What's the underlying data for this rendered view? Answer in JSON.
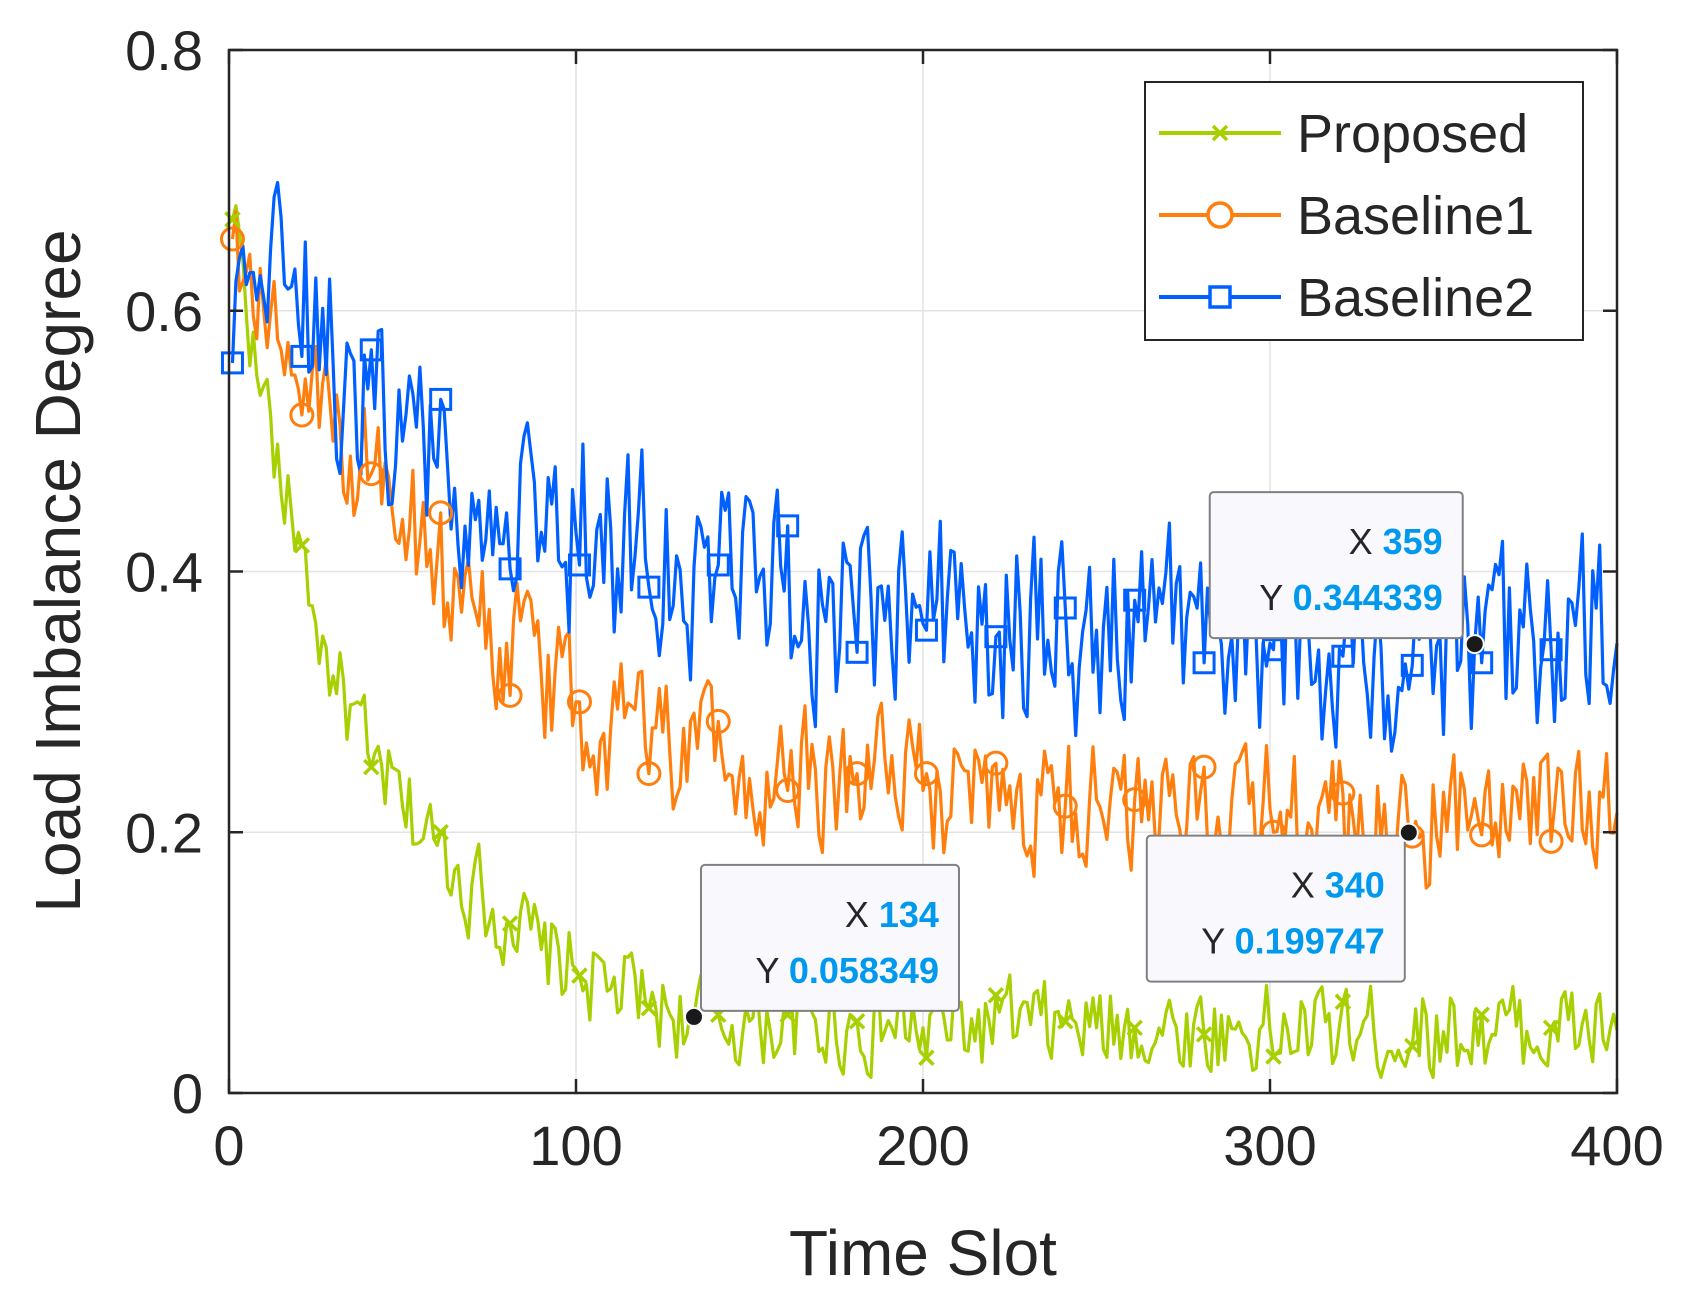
{
  "chart_data": {
    "type": "line",
    "xlabel": "Time Slot",
    "ylabel": "Load Imbalance Degree",
    "xlim": [
      0,
      400
    ],
    "ylim": [
      0,
      0.8
    ],
    "xticks": [
      0,
      100,
      200,
      300,
      400
    ],
    "yticks": [
      0,
      0.2,
      0.4,
      0.6,
      0.8
    ],
    "xtick_labels": [
      "0",
      "100",
      "200",
      "300",
      "400"
    ],
    "ytick_labels": [
      "0",
      "0.2",
      "0.4",
      "0.6",
      "0.8"
    ],
    "grid": true,
    "legend_position": "top-right",
    "series": [
      {
        "name": "Proposed",
        "color": "#a6d000",
        "marker": "x",
        "noise": 0.015,
        "keypoints": [
          [
            1,
            0.67
          ],
          [
            3,
            0.66
          ],
          [
            8,
            0.55
          ],
          [
            12,
            0.52
          ],
          [
            15,
            0.46
          ],
          [
            20,
            0.43
          ],
          [
            25,
            0.36
          ],
          [
            30,
            0.32
          ],
          [
            40,
            0.26
          ],
          [
            50,
            0.22
          ],
          [
            60,
            0.19
          ],
          [
            70,
            0.16
          ],
          [
            80,
            0.13
          ],
          [
            90,
            0.11
          ],
          [
            100,
            0.095
          ],
          [
            110,
            0.08
          ],
          [
            120,
            0.07
          ],
          [
            134,
            0.058
          ],
          [
            150,
            0.055
          ],
          [
            200,
            0.05
          ],
          [
            250,
            0.05
          ],
          [
            300,
            0.048
          ],
          [
            350,
            0.047
          ],
          [
            400,
            0.048
          ]
        ],
        "marker_points": [
          [
            1,
            0.67
          ],
          [
            21,
            0.42
          ],
          [
            41,
            0.25
          ],
          [
            61,
            0.2
          ],
          [
            81,
            0.13
          ],
          [
            101,
            0.09
          ],
          [
            121,
            0.065
          ],
          [
            141,
            0.06
          ],
          [
            161,
            0.06
          ],
          [
            181,
            0.055
          ],
          [
            201,
            0.027
          ],
          [
            221,
            0.075
          ],
          [
            241,
            0.055
          ],
          [
            261,
            0.05
          ],
          [
            281,
            0.045
          ],
          [
            301,
            0.028
          ],
          [
            321,
            0.07
          ],
          [
            341,
            0.036
          ],
          [
            361,
            0.06
          ],
          [
            381,
            0.05
          ]
        ]
      },
      {
        "name": "Baseline1",
        "color": "#ff7f0e",
        "marker": "o",
        "noise": 0.022,
        "keypoints": [
          [
            1,
            0.655
          ],
          [
            5,
            0.63
          ],
          [
            10,
            0.6
          ],
          [
            15,
            0.57
          ],
          [
            20,
            0.54
          ],
          [
            30,
            0.5
          ],
          [
            40,
            0.47
          ],
          [
            50,
            0.44
          ],
          [
            60,
            0.41
          ],
          [
            70,
            0.38
          ],
          [
            80,
            0.345
          ],
          [
            90,
            0.32
          ],
          [
            100,
            0.3
          ],
          [
            110,
            0.28
          ],
          [
            120,
            0.265
          ],
          [
            140,
            0.255
          ],
          [
            160,
            0.245
          ],
          [
            180,
            0.237
          ],
          [
            200,
            0.232
          ],
          [
            250,
            0.225
          ],
          [
            300,
            0.218
          ],
          [
            340,
            0.2
          ],
          [
            360,
            0.21
          ],
          [
            400,
            0.215
          ]
        ],
        "marker_points": [
          [
            1,
            0.655
          ],
          [
            21,
            0.52
          ],
          [
            41,
            0.475
          ],
          [
            61,
            0.445
          ],
          [
            81,
            0.305
          ],
          [
            101,
            0.3
          ],
          [
            121,
            0.245
          ],
          [
            141,
            0.285
          ],
          [
            161,
            0.232
          ],
          [
            181,
            0.245
          ],
          [
            201,
            0.245
          ],
          [
            221,
            0.253
          ],
          [
            241,
            0.22
          ],
          [
            261,
            0.225
          ],
          [
            281,
            0.25
          ],
          [
            301,
            0.2
          ],
          [
            321,
            0.23
          ],
          [
            341,
            0.197
          ],
          [
            361,
            0.198
          ],
          [
            381,
            0.193
          ]
        ]
      },
      {
        "name": "Baseline2",
        "color": "#0060ff",
        "marker": "s",
        "noise": 0.033,
        "keypoints": [
          [
            1,
            0.56
          ],
          [
            5,
            0.62
          ],
          [
            10,
            0.61
          ],
          [
            20,
            0.59
          ],
          [
            30,
            0.56
          ],
          [
            40,
            0.54
          ],
          [
            50,
            0.5
          ],
          [
            60,
            0.48
          ],
          [
            70,
            0.46
          ],
          [
            80,
            0.445
          ],
          [
            100,
            0.43
          ],
          [
            120,
            0.41
          ],
          [
            140,
            0.395
          ],
          [
            160,
            0.385
          ],
          [
            180,
            0.37
          ],
          [
            200,
            0.36
          ],
          [
            250,
            0.355
          ],
          [
            300,
            0.345
          ],
          [
            359,
            0.344
          ],
          [
            400,
            0.345
          ]
        ],
        "marker_points": [
          [
            1,
            0.56
          ],
          [
            21,
            0.565
          ],
          [
            41,
            0.57
          ],
          [
            61,
            0.532
          ],
          [
            81,
            0.402
          ],
          [
            101,
            0.405
          ],
          [
            121,
            0.388
          ],
          [
            141,
            0.405
          ],
          [
            161,
            0.435
          ],
          [
            181,
            0.338
          ],
          [
            201,
            0.355
          ],
          [
            221,
            0.35
          ],
          [
            241,
            0.372
          ],
          [
            261,
            0.378
          ],
          [
            281,
            0.33
          ],
          [
            301,
            0.34
          ],
          [
            321,
            0.335
          ],
          [
            341,
            0.328
          ],
          [
            361,
            0.33
          ],
          [
            381,
            0.34
          ]
        ]
      }
    ],
    "datatips": [
      {
        "x_label": "X",
        "x_value": "134",
        "y_label": "Y",
        "y_value": "0.058349",
        "x": 134,
        "y": 0.058349
      },
      {
        "x_label": "X",
        "x_value": "340",
        "y_label": "Y",
        "y_value": "0.199747",
        "x": 340,
        "y": 0.199747
      },
      {
        "x_label": "X",
        "x_value": "359",
        "y_label": "Y",
        "y_value": "0.344339",
        "x": 359,
        "y": 0.344339
      }
    ]
  }
}
